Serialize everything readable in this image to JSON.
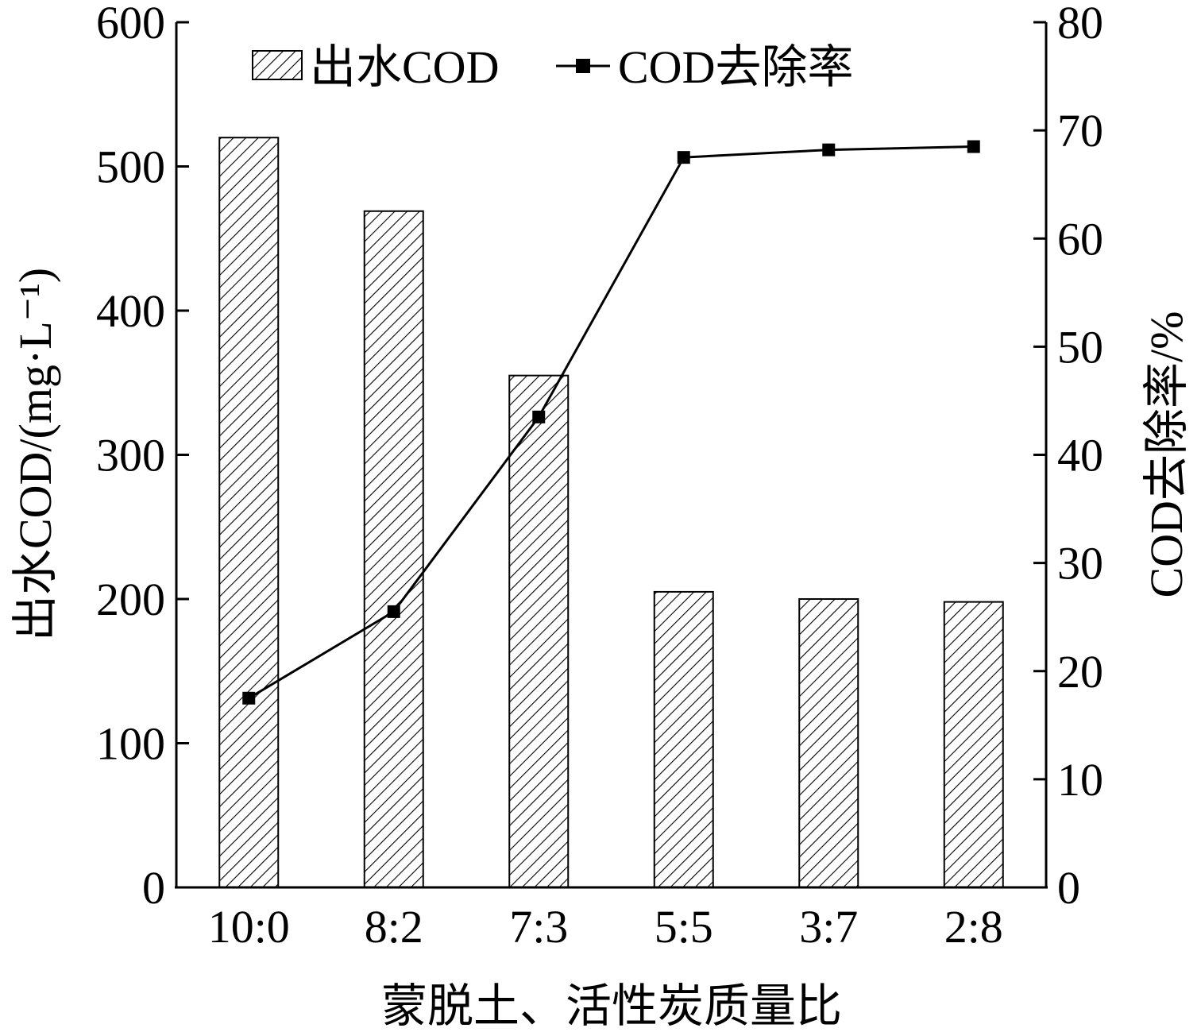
{
  "chart_data": {
    "type": "bar",
    "categories": [
      "10:0",
      "8:2",
      "7:3",
      "5:5",
      "3:7",
      "2:8"
    ],
    "series": [
      {
        "name": "出水COD",
        "type": "bar",
        "axis": "left",
        "pattern": "diagonal-hatch",
        "values": [
          520,
          469,
          355,
          205,
          200,
          198
        ]
      },
      {
        "name": "COD去除率",
        "type": "line",
        "axis": "right",
        "marker": "square",
        "values": [
          17.5,
          25.5,
          43.5,
          67.5,
          68.2,
          68.5
        ]
      }
    ],
    "xlabel": "蒙脱土、活性炭质量比",
    "ylabel": "出水COD/(mg·L⁻¹)",
    "ylabel_right": "COD去除率/%",
    "ylim": [
      0,
      600
    ],
    "ylim_right": [
      0,
      80
    ],
    "yticks": [
      "0",
      "100",
      "200",
      "300",
      "400",
      "500",
      "600"
    ],
    "yticks_right": [
      "0",
      "10",
      "20",
      "30",
      "40",
      "50",
      "60",
      "70",
      "80"
    ],
    "grid": false,
    "legend_position": "top-left",
    "colors": {
      "ink": "#000000",
      "background": "#ffffff"
    }
  }
}
